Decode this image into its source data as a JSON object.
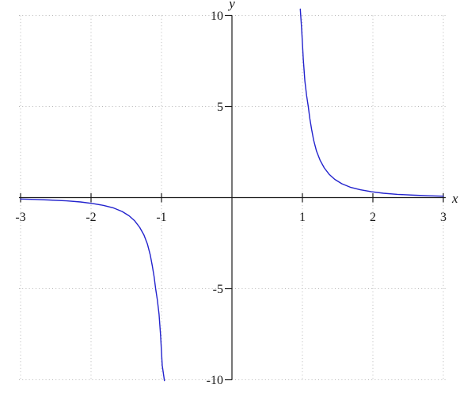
{
  "figure": {
    "background": "#ffffff"
  },
  "chart_data": {
    "type": "line",
    "title": "",
    "xlabel": "x",
    "ylabel": "y",
    "xlim": [
      -3,
      3
    ],
    "ylim": [
      -10,
      10
    ],
    "x_ticks": {
      "values": [
        -3,
        -2,
        -1,
        1,
        2,
        3
      ],
      "labels": [
        "-3",
        "-2",
        "-1",
        "1",
        "2",
        "3"
      ]
    },
    "y_ticks": {
      "values": [
        10,
        5,
        -5,
        -10
      ],
      "labels": [
        "10",
        "5",
        "-5",
        "-10"
      ]
    },
    "grid": {
      "visible": true,
      "style": "dotted",
      "color": "#b8b8b8"
    },
    "axes_color": "#1a1a1a",
    "curve_color": "#2323cd",
    "vertical_asymptotes": [
      -1,
      1
    ],
    "legend": {
      "visible": false
    },
    "series": [
      {
        "name": "left-branch",
        "points": [
          [
            -3.0,
            -0.08
          ],
          [
            -2.8,
            -0.1
          ],
          [
            -2.6,
            -0.13
          ],
          [
            -2.35,
            -0.18
          ],
          [
            -2.15,
            -0.24
          ],
          [
            -1.98,
            -0.32
          ],
          [
            -1.82,
            -0.43
          ],
          [
            -1.68,
            -0.57
          ],
          [
            -1.56,
            -0.76
          ],
          [
            -1.46,
            -1.0
          ],
          [
            -1.38,
            -1.28
          ],
          [
            -1.31,
            -1.63
          ],
          [
            -1.25,
            -2.05
          ],
          [
            -1.2,
            -2.55
          ],
          [
            -1.16,
            -3.15
          ],
          [
            -1.13,
            -3.75
          ],
          [
            -1.105,
            -4.35
          ],
          [
            -1.083,
            -5.0
          ],
          [
            -1.06,
            -5.6
          ],
          [
            -1.035,
            -6.4
          ],
          [
            -1.012,
            -7.6
          ],
          [
            -0.99,
            -9.2
          ],
          [
            -0.958,
            -10.05
          ]
        ]
      },
      {
        "name": "right-branch",
        "points": [
          [
            0.97,
            10.35
          ],
          [
            0.99,
            9.2
          ],
          [
            1.012,
            7.6
          ],
          [
            1.035,
            6.4
          ],
          [
            1.06,
            5.6
          ],
          [
            1.083,
            5.0
          ],
          [
            1.105,
            4.35
          ],
          [
            1.13,
            3.75
          ],
          [
            1.16,
            3.15
          ],
          [
            1.2,
            2.55
          ],
          [
            1.25,
            2.05
          ],
          [
            1.31,
            1.63
          ],
          [
            1.38,
            1.28
          ],
          [
            1.46,
            1.0
          ],
          [
            1.56,
            0.76
          ],
          [
            1.68,
            0.57
          ],
          [
            1.82,
            0.43
          ],
          [
            1.98,
            0.32
          ],
          [
            2.15,
            0.24
          ],
          [
            2.35,
            0.18
          ],
          [
            2.6,
            0.13
          ],
          [
            2.8,
            0.1
          ],
          [
            3.0,
            0.08
          ]
        ]
      }
    ]
  }
}
